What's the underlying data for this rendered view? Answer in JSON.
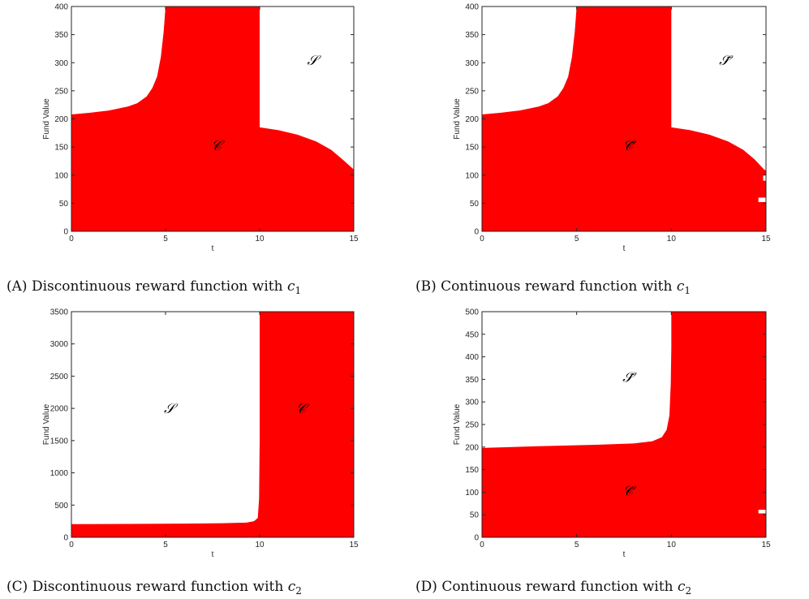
{
  "colors": {
    "region": "#ff0000",
    "background": "#ffffff",
    "axis": "#262626"
  },
  "chart_data": [
    {
      "type": "area",
      "panel": "a",
      "caption_label": "(A)",
      "caption_text": "Discontinuous reward function with",
      "caption_var": "c",
      "caption_sub": "1",
      "xlabel": "t",
      "ylabel": "Fund Value",
      "xlim": [
        0,
        15
      ],
      "ylim": [
        0,
        400
      ],
      "xticks": [
        0,
        5,
        10,
        15
      ],
      "yticks": [
        0,
        50,
        100,
        150,
        200,
        250,
        300,
        350,
        400
      ],
      "region_labels": [
        {
          "text": "𝒮",
          "x": 12.8,
          "y": 305
        },
        {
          "text": "𝒞",
          "x": 7.7,
          "y": 153
        }
      ],
      "boundary": [
        {
          "x": 0,
          "y": 208
        },
        {
          "x": 1,
          "y": 211
        },
        {
          "x": 2,
          "y": 215
        },
        {
          "x": 3,
          "y": 222
        },
        {
          "x": 3.5,
          "y": 228
        },
        {
          "x": 4,
          "y": 240
        },
        {
          "x": 4.3,
          "y": 255
        },
        {
          "x": 4.55,
          "y": 275
        },
        {
          "x": 4.75,
          "y": 310
        },
        {
          "x": 4.9,
          "y": 355
        },
        {
          "x": 5.0,
          "y": 400
        },
        {
          "x": 10.0,
          "y": 400
        },
        {
          "x": 10.0,
          "y": 185
        },
        {
          "x": 11,
          "y": 180
        },
        {
          "x": 12,
          "y": 172
        },
        {
          "x": 13,
          "y": 160
        },
        {
          "x": 13.8,
          "y": 145
        },
        {
          "x": 14.4,
          "y": 128
        },
        {
          "x": 15,
          "y": 110
        }
      ],
      "notches": []
    },
    {
      "type": "area",
      "panel": "b",
      "caption_label": "(B)",
      "caption_text": "Continuous reward function with",
      "caption_var": "c",
      "caption_sub": "1",
      "xlabel": "t",
      "ylabel": "Fund Value",
      "xlim": [
        0,
        15
      ],
      "ylim": [
        0,
        400
      ],
      "xticks": [
        0,
        5,
        10,
        15
      ],
      "yticks": [
        0,
        50,
        100,
        150,
        200,
        250,
        300,
        350,
        400
      ],
      "region_labels": [
        {
          "text": "𝒮̃",
          "x": 12.8,
          "y": 305
        },
        {
          "text": "𝒞̃",
          "x": 7.7,
          "y": 153
        }
      ],
      "boundary": [
        {
          "x": 0,
          "y": 208
        },
        {
          "x": 1,
          "y": 211
        },
        {
          "x": 2,
          "y": 215
        },
        {
          "x": 3,
          "y": 222
        },
        {
          "x": 3.5,
          "y": 228
        },
        {
          "x": 4,
          "y": 240
        },
        {
          "x": 4.3,
          "y": 255
        },
        {
          "x": 4.55,
          "y": 275
        },
        {
          "x": 4.75,
          "y": 310
        },
        {
          "x": 4.9,
          "y": 355
        },
        {
          "x": 5.0,
          "y": 400
        },
        {
          "x": 10.0,
          "y": 400
        },
        {
          "x": 10.0,
          "y": 185
        },
        {
          "x": 11,
          "y": 180
        },
        {
          "x": 12,
          "y": 172
        },
        {
          "x": 13,
          "y": 160
        },
        {
          "x": 13.8,
          "y": 145
        },
        {
          "x": 14.4,
          "y": 128
        },
        {
          "x": 14.9,
          "y": 110
        },
        {
          "x": 15,
          "y": 108
        }
      ],
      "notches": [
        {
          "x0": 14.6,
          "x1": 15,
          "y0": 52,
          "y1": 60
        },
        {
          "x0": 14.85,
          "x1": 15,
          "y0": 90,
          "y1": 100
        }
      ]
    },
    {
      "type": "area",
      "panel": "c",
      "caption_label": "(C)",
      "caption_text": "Discontinuous reward function with",
      "caption_var": "c",
      "caption_sub": "2",
      "xlabel": "t",
      "ylabel": "Fund Value",
      "xlim": [
        0,
        15
      ],
      "ylim": [
        0,
        3500
      ],
      "xticks": [
        0,
        5,
        10,
        15
      ],
      "yticks": [
        0,
        500,
        1000,
        1500,
        2000,
        2500,
        3000,
        3500
      ],
      "region_labels": [
        {
          "text": "𝒮",
          "x": 5.2,
          "y": 2000
        },
        {
          "text": "𝒞",
          "x": 12.2,
          "y": 2000
        }
      ],
      "boundary": [
        {
          "x": 0,
          "y": 205
        },
        {
          "x": 3,
          "y": 208
        },
        {
          "x": 6,
          "y": 212
        },
        {
          "x": 8,
          "y": 218
        },
        {
          "x": 9.3,
          "y": 228
        },
        {
          "x": 9.7,
          "y": 250
        },
        {
          "x": 9.9,
          "y": 300
        },
        {
          "x": 9.97,
          "y": 600
        },
        {
          "x": 10.0,
          "y": 1500
        },
        {
          "x": 10.0,
          "y": 3500
        },
        {
          "x": 15,
          "y": 3500
        }
      ],
      "notches": []
    },
    {
      "type": "area",
      "panel": "d",
      "caption_label": "(D)",
      "caption_text": "Continuous reward function with",
      "caption_var": "c",
      "caption_sub": "2",
      "xlabel": "t",
      "ylabel": "Fund Value",
      "xlim": [
        0,
        15
      ],
      "ylim": [
        0,
        500
      ],
      "xticks": [
        0,
        5,
        10,
        15
      ],
      "yticks": [
        0,
        50,
        100,
        150,
        200,
        250,
        300,
        350,
        400,
        450,
        500
      ],
      "region_labels": [
        {
          "text": "𝒮̃",
          "x": 7.7,
          "y": 355
        },
        {
          "text": "𝒞̃",
          "x": 7.7,
          "y": 103
        }
      ],
      "boundary": [
        {
          "x": 0,
          "y": 198
        },
        {
          "x": 3,
          "y": 202
        },
        {
          "x": 6,
          "y": 205
        },
        {
          "x": 8,
          "y": 208
        },
        {
          "x": 9.0,
          "y": 213
        },
        {
          "x": 9.5,
          "y": 222
        },
        {
          "x": 9.75,
          "y": 238
        },
        {
          "x": 9.9,
          "y": 270
        },
        {
          "x": 9.97,
          "y": 340
        },
        {
          "x": 10.0,
          "y": 420
        },
        {
          "x": 10.0,
          "y": 500
        },
        {
          "x": 15,
          "y": 500
        }
      ],
      "notches": [
        {
          "x0": 14.6,
          "x1": 15,
          "y0": 53,
          "y1": 61
        }
      ]
    }
  ]
}
